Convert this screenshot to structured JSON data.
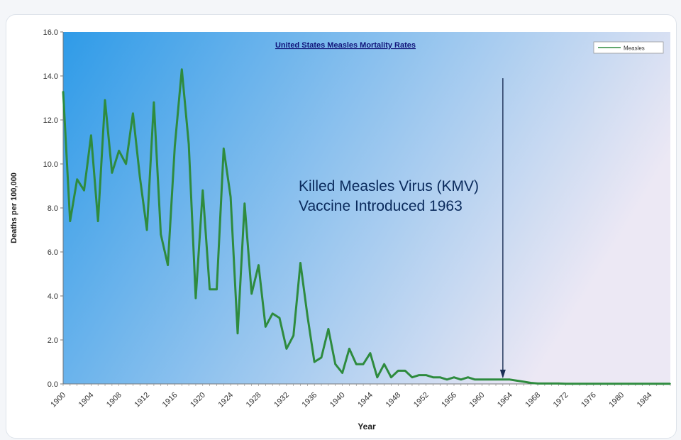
{
  "chart_data": {
    "type": "line",
    "title": "United States Measles Mortality Rates",
    "xlabel": "Year",
    "ylabel": "Deaths per 100,000",
    "ylim": [
      0,
      16
    ],
    "yticks": [
      "0.0",
      "2.0",
      "4.0",
      "6.0",
      "8.0",
      "10.0",
      "12.0",
      "14.0",
      "16.0"
    ],
    "xlim": [
      1900,
      1987
    ],
    "xticks": [
      "1900",
      "1904",
      "1908",
      "1912",
      "1916",
      "1920",
      "1924",
      "1928",
      "1932",
      "1936",
      "1940",
      "1944",
      "1948",
      "1952",
      "1956",
      "1960",
      "1964",
      "1968",
      "1972",
      "1976",
      "1980",
      "1984"
    ],
    "grid": false,
    "legend_position": "top-right",
    "series": [
      {
        "name": "Measles",
        "color": "#2e8b3e",
        "x": [
          1900,
          1901,
          1902,
          1903,
          1904,
          1905,
          1906,
          1907,
          1908,
          1909,
          1910,
          1911,
          1912,
          1913,
          1914,
          1915,
          1916,
          1917,
          1918,
          1919,
          1920,
          1921,
          1922,
          1923,
          1924,
          1925,
          1926,
          1927,
          1928,
          1929,
          1930,
          1931,
          1932,
          1933,
          1934,
          1935,
          1936,
          1937,
          1938,
          1939,
          1940,
          1941,
          1942,
          1943,
          1944,
          1945,
          1946,
          1947,
          1948,
          1949,
          1950,
          1951,
          1952,
          1953,
          1954,
          1955,
          1956,
          1957,
          1958,
          1959,
          1960,
          1961,
          1962,
          1963,
          1964,
          1965,
          1966,
          1967,
          1968,
          1969,
          1970,
          1971,
          1972,
          1973,
          1974,
          1975,
          1976,
          1977,
          1978,
          1979,
          1980,
          1981,
          1982,
          1983,
          1984,
          1985,
          1986,
          1987
        ],
        "values": [
          13.3,
          7.4,
          9.3,
          8.8,
          11.3,
          7.4,
          12.9,
          9.6,
          10.6,
          10.0,
          12.3,
          9.4,
          7.0,
          12.8,
          6.8,
          5.4,
          10.8,
          14.3,
          10.9,
          3.9,
          8.8,
          4.3,
          4.3,
          10.7,
          8.5,
          2.3,
          8.2,
          4.1,
          5.4,
          2.6,
          3.2,
          3.0,
          1.6,
          2.2,
          5.5,
          3.1,
          1.0,
          1.2,
          2.5,
          0.9,
          0.5,
          1.6,
          0.9,
          0.9,
          1.4,
          0.3,
          0.9,
          0.3,
          0.6,
          0.6,
          0.3,
          0.4,
          0.4,
          0.3,
          0.3,
          0.2,
          0.3,
          0.2,
          0.3,
          0.2,
          0.2,
          0.2,
          0.2,
          0.2,
          0.2,
          0.15,
          0.1,
          0.05,
          0.02,
          0.02,
          0.02,
          0.02,
          0.01,
          0.01,
          0.01,
          0.01,
          0.01,
          0.01,
          0.01,
          0.01,
          0.01,
          0.01,
          0.01,
          0.01,
          0.01,
          0.01,
          0.01,
          0.01
        ]
      }
    ],
    "annotation": {
      "lines": [
        "Killed Measles Virus (KMV)",
        "Vaccine Introduced 1963"
      ],
      "arrow_year": 1963
    },
    "colors": {
      "plot_gradient_start": "#2f9be8",
      "plot_gradient_end": "#ece8f4",
      "title_color": "#10147a",
      "axis_text": "#333333",
      "annotation_text": "#0a2a5c"
    }
  }
}
